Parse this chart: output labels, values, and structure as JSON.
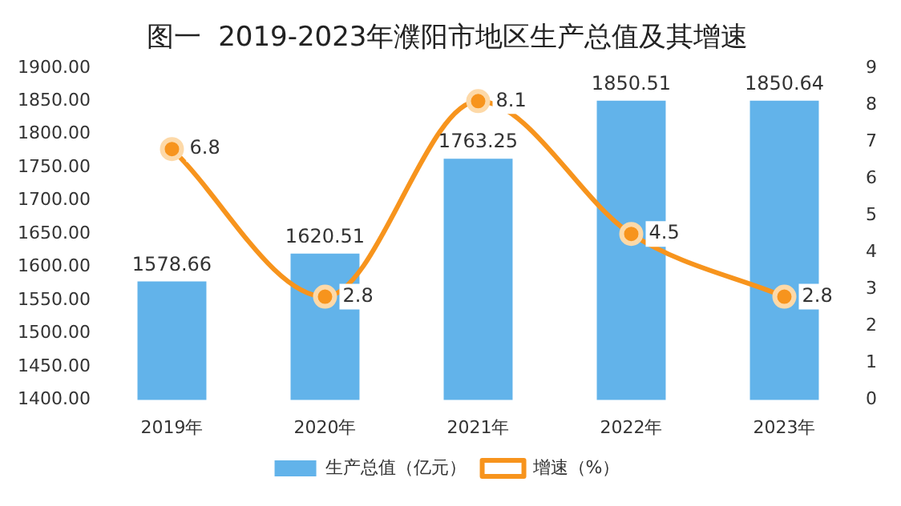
{
  "chart_data": {
    "type": "bar",
    "title": "图一  2019-2023年濮阳市地区生产总值及其增速",
    "categories": [
      "2019年",
      "2020年",
      "2021年",
      "2022年",
      "2023年"
    ],
    "series": [
      {
        "name": "生产总值（亿元）",
        "color": "#62b3ea",
        "values": [
          1578.66,
          1620.51,
          1763.25,
          1850.51,
          1850.64
        ]
      },
      {
        "name": "增速（%）",
        "type": "line",
        "axis": "y2",
        "color": "#f7941d",
        "values": [
          6.8,
          2.8,
          8.1,
          4.5,
          2.8
        ]
      }
    ],
    "ylim": [
      1400,
      1900
    ],
    "yticks": [
      {
        "value": 1400,
        "label": "1400.00"
      },
      {
        "value": 1450,
        "label": "1450.00"
      },
      {
        "value": 1500,
        "label": "1500.00"
      },
      {
        "value": 1550,
        "label": "1550.00"
      },
      {
        "value": 1600,
        "label": "1600.00"
      },
      {
        "value": 1650,
        "label": "1650.00"
      },
      {
        "value": 1700,
        "label": "1700.00"
      },
      {
        "value": 1750,
        "label": "1750.00"
      },
      {
        "value": 1800,
        "label": "1800.00"
      },
      {
        "value": 1850,
        "label": "1850.00"
      },
      {
        "value": 1900,
        "label": "1900.00"
      }
    ],
    "y2lim": [
      0,
      9
    ],
    "y2ticks": [
      0,
      1,
      2,
      3,
      4,
      5,
      6,
      7,
      8,
      9
    ],
    "data_labels": true,
    "legend": "bottom",
    "marker": "circle",
    "grid": false
  }
}
